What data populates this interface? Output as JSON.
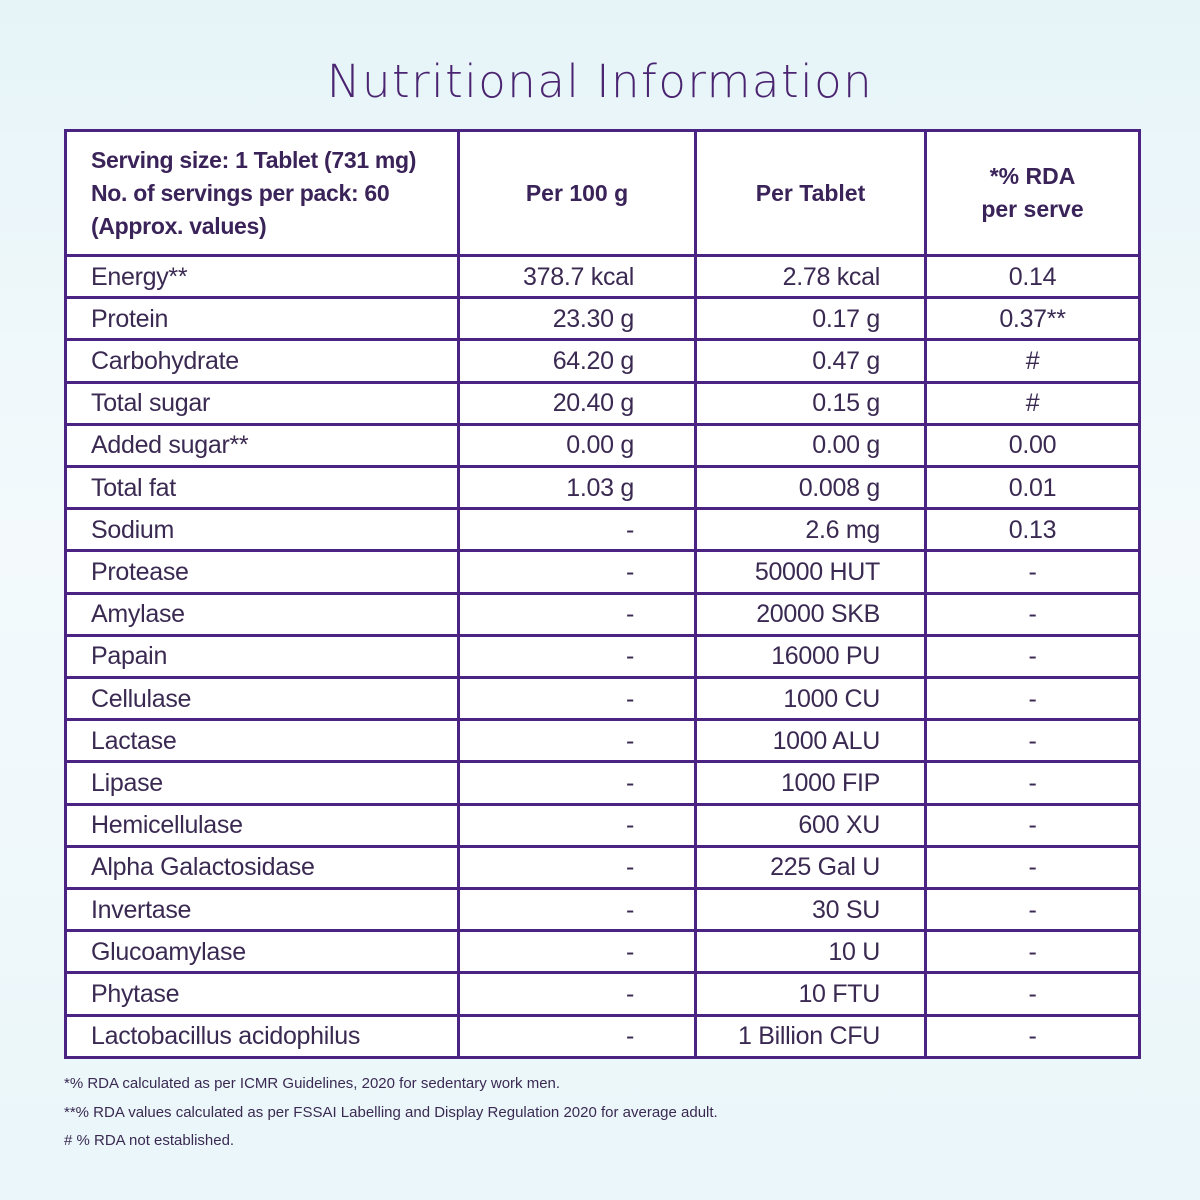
{
  "title": "Nutritional Information",
  "header": {
    "serving_line1": "Serving size: 1 Tablet (731 mg)",
    "serving_line2": "No. of servings per pack: 60",
    "serving_line3": "(Approx. values)",
    "per100": "Per 100 g",
    "pertablet": "Per Tablet",
    "rda_line1": "*% RDA",
    "rda_line2": "per serve"
  },
  "rows": [
    {
      "name": "Energy**",
      "per100": "378.7 kcal",
      "pertablet": "2.78 kcal",
      "rda": "0.14"
    },
    {
      "name": "Protein",
      "per100": "23.30 g",
      "pertablet": "0.17 g",
      "rda": "0.37**"
    },
    {
      "name": "Carbohydrate",
      "per100": "64.20 g",
      "pertablet": "0.47 g",
      "rda": "#"
    },
    {
      "name": "Total sugar",
      "per100": "20.40 g",
      "pertablet": "0.15 g",
      "rda": "#"
    },
    {
      "name": "Added sugar**",
      "per100": "0.00 g",
      "pertablet": "0.00 g",
      "rda": "0.00"
    },
    {
      "name": "Total fat",
      "per100": "1.03 g",
      "pertablet": "0.008 g",
      "rda": "0.01"
    },
    {
      "name": "Sodium",
      "per100": "-",
      "pertablet": "2.6 mg",
      "rda": "0.13"
    },
    {
      "name": "Protease",
      "per100": "-",
      "pertablet": "50000 HUT",
      "rda": "-"
    },
    {
      "name": "Amylase",
      "per100": "-",
      "pertablet": "20000 SKB",
      "rda": "-"
    },
    {
      "name": "Papain",
      "per100": "-",
      "pertablet": "16000 PU",
      "rda": "-"
    },
    {
      "name": "Cellulase",
      "per100": "-",
      "pertablet": "1000 CU",
      "rda": "-"
    },
    {
      "name": "Lactase",
      "per100": "-",
      "pertablet": "1000 ALU",
      "rda": "-"
    },
    {
      "name": "Lipase",
      "per100": "-",
      "pertablet": "1000 FIP",
      "rda": "-"
    },
    {
      "name": "Hemicellulase",
      "per100": "-",
      "pertablet": "600 XU",
      "rda": "-"
    },
    {
      "name": "Alpha Galactosidase",
      "per100": "-",
      "pertablet": "225 Gal U",
      "rda": "-"
    },
    {
      "name": "Invertase",
      "per100": "-",
      "pertablet": "30 SU",
      "rda": "-"
    },
    {
      "name": "Glucoamylase",
      "per100": "-",
      "pertablet": "10 U",
      "rda": "-"
    },
    {
      "name": "Phytase",
      "per100": "-",
      "pertablet": "10 FTU",
      "rda": "-"
    },
    {
      "name": "Lactobacillus acidophilus",
      "per100": "-",
      "pertablet": "1 Billion CFU",
      "rda": "-"
    }
  ],
  "footnotes": [
    "*% RDA calculated as per ICMR Guidelines, 2020 for sedentary work men.",
    "**% RDA values calculated as per FSSAI Labelling and Display Regulation 2020 for average adult.",
    "# % RDA not established."
  ],
  "colors": {
    "border": "#4b2382",
    "title": "#4a2470",
    "text": "#3a2a52"
  }
}
